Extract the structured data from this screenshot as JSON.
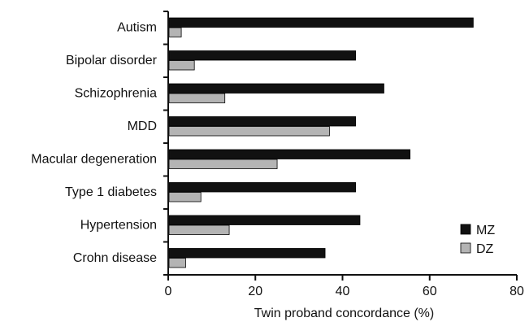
{
  "chart_data": {
    "type": "bar",
    "orientation": "horizontal",
    "categories": [
      "Autism",
      "Bipolar disorder",
      "Schizophrenia",
      "MDD",
      "Macular degeneration",
      "Type 1 diabetes",
      "Hypertension",
      "Crohn disease"
    ],
    "series": [
      {
        "name": "MZ",
        "color": "#111111",
        "values": [
          70,
          43,
          49.5,
          43,
          55.5,
          43,
          44,
          36
        ]
      },
      {
        "name": "DZ",
        "color": "#b4b4b4",
        "values": [
          3,
          6,
          13,
          37,
          25,
          7.5,
          14,
          4
        ]
      }
    ],
    "xlabel": "Twin proband concordance (%)",
    "xlim": [
      0,
      80
    ],
    "xticks": [
      "0",
      "20",
      "40",
      "60",
      "80"
    ],
    "grid": false,
    "legend_position": "bottom-right"
  }
}
